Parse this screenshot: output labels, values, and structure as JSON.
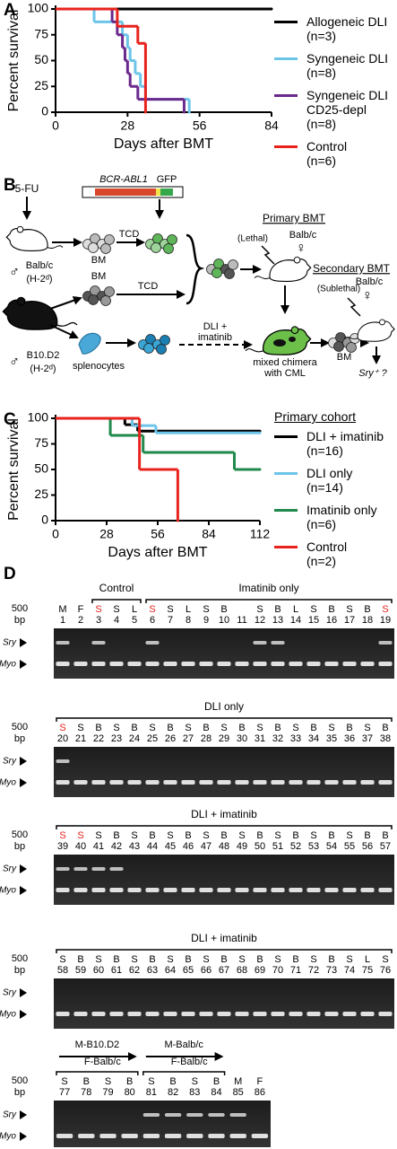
{
  "chart_data": [
    {
      "type": "survival",
      "panel": "A",
      "xlabel": "Days after BMT",
      "ylabel": "Percent survival",
      "xlim": [
        0,
        84
      ],
      "xticks": [
        0,
        28,
        56,
        84
      ],
      "ylim": [
        0,
        100
      ],
      "yticks": [
        0,
        25,
        50,
        75,
        100
      ],
      "series": [
        {
          "name": "Allogeneic DLI (n=3)",
          "color": "#000000",
          "x": [
            0,
            84
          ],
          "values": [
            100,
            100
          ]
        },
        {
          "name": "Syngeneic DLI (n=8)",
          "color": "#6cc5e9",
          "x": [
            0,
            15,
            26,
            28,
            29,
            31,
            33,
            35,
            52
          ],
          "values": [
            100,
            87.5,
            75,
            62.5,
            50,
            37.5,
            25,
            12.5,
            0
          ]
        },
        {
          "name": "Syngeneic DLI CD25-depl (n=8)",
          "color": "#6a2a8c",
          "x": [
            0,
            22,
            24,
            26,
            27,
            28,
            29,
            32,
            50
          ],
          "values": [
            100,
            87.5,
            75,
            62.5,
            50,
            37.5,
            25,
            12.5,
            0
          ]
        },
        {
          "name": "Control (n=6)",
          "color": "#e8231d",
          "x": [
            0,
            24,
            32,
            35
          ],
          "values": [
            100,
            83.3,
            66.7,
            0
          ]
        }
      ]
    },
    {
      "type": "survival",
      "panel": "C",
      "legend_title": "Primary cohort",
      "xlabel": "Days after BMT",
      "ylabel": "Percent survival",
      "xlim": [
        0,
        112
      ],
      "xticks": [
        0,
        28,
        56,
        84,
        112
      ],
      "ylim": [
        0,
        100
      ],
      "yticks": [
        0,
        25,
        50,
        75,
        100
      ],
      "series": [
        {
          "name": "DLI + imatinib (n=16)",
          "color": "#000000",
          "x": [
            0,
            38,
            45,
            112
          ],
          "values": [
            100,
            93.75,
            87.5,
            87.5
          ]
        },
        {
          "name": "DLI only (n=14)",
          "color": "#6cc5e9",
          "x": [
            0,
            42,
            55,
            112
          ],
          "values": [
            100,
            92.9,
            85.7,
            85.7
          ]
        },
        {
          "name": "Imatinib only (n=6)",
          "color": "#1f8a4c",
          "x": [
            0,
            30,
            48,
            98,
            112
          ],
          "values": [
            100,
            83.3,
            66.7,
            50,
            50
          ]
        },
        {
          "name": "Control (n=2)",
          "color": "#e8231d",
          "x": [
            0,
            46,
            67
          ],
          "values": [
            100,
            50,
            0
          ]
        }
      ]
    }
  ],
  "diagram": {
    "panel": "B",
    "drug": "5-FU",
    "gene": "BCR-ABL1",
    "reporter": "GFP",
    "tcd_1": "TCD",
    "tcd_2": "TCD",
    "bm_1": "BM",
    "bm_2": "BM",
    "bm_3": "BM",
    "host_sex": "♂",
    "host_strain": "Balb/c",
    "host_haplotype": "(H-2ᵈ)",
    "donor_sex": "♂",
    "donor_strain": "B10.D2",
    "donor_haplotype": "(H-2ᵈ)",
    "splenocytes": "splenocytes",
    "treatment": [
      "DLI +",
      "imatinib"
    ],
    "primary_title": "Primary BMT",
    "primary_dose": "(Lethal)",
    "primary_strain": "Balb/c",
    "primary_sex": "♀",
    "chimera": [
      "mixed chimera",
      "with CML"
    ],
    "secondary_title": "Secondary BMT",
    "secondary_dose": "(Sublethal)",
    "secondary_strain": "Balb/c",
    "secondary_sex": "♀",
    "readout": "Sry⁺ ?"
  },
  "gels": {
    "panel": "D",
    "marker": [
      "500",
      "bp"
    ],
    "band_labels": [
      "Sry",
      "Myo"
    ],
    "blots": [
      {
        "sections": [
          {
            "lanes": [
              {
                "number": 1,
                "label": "M",
                "sry": true
              },
              {
                "number": 2,
                "label": "F"
              }
            ]
          },
          {
            "title": "Control",
            "lanes": [
              {
                "number": 3,
                "label": "S",
                "color": "#e8231d",
                "sry": true
              },
              {
                "number": 4,
                "label": "S"
              },
              {
                "number": 5,
                "label": "L"
              }
            ]
          },
          {
            "title": "Imatinib only",
            "lanes": [
              {
                "number": 6,
                "label": "S",
                "color": "#e8231d",
                "sry": true
              },
              {
                "number": 7,
                "label": "S"
              },
              {
                "number": 8,
                "label": "L"
              },
              {
                "number": 9,
                "label": "S"
              },
              {
                "number": 10,
                "label": "B"
              },
              {
                "number": 11,
                "label": null
              },
              {
                "number": 12,
                "label": "S",
                "sry": true
              },
              {
                "number": 13,
                "label": "B",
                "sry": true
              },
              {
                "number": 14,
                "label": "L"
              },
              {
                "number": 15,
                "label": "S"
              },
              {
                "number": 16,
                "label": "B"
              },
              {
                "number": 17,
                "label": "S"
              },
              {
                "number": 18,
                "label": "B"
              },
              {
                "number": 19,
                "label": "S",
                "color": "#e8231d",
                "sry": true
              }
            ]
          }
        ]
      },
      {
        "sections": [
          {
            "title": "DLI only",
            "lanes": [
              {
                "number": 20,
                "label": "S",
                "color": "#e8231d",
                "sry": true
              },
              {
                "number": 21,
                "label": "S"
              },
              {
                "number": 22,
                "label": "B"
              },
              {
                "number": 23,
                "label": "S"
              },
              {
                "number": 24,
                "label": "B"
              },
              {
                "number": 25,
                "label": "S"
              },
              {
                "number": 26,
                "label": "B"
              },
              {
                "number": 27,
                "label": "S"
              },
              {
                "number": 28,
                "label": "B"
              },
              {
                "number": 29,
                "label": "S"
              },
              {
                "number": 30,
                "label": "B"
              },
              {
                "number": 31,
                "label": "S"
              },
              {
                "number": 32,
                "label": "B"
              },
              {
                "number": 33,
                "label": "S"
              },
              {
                "number": 34,
                "label": "B"
              },
              {
                "number": 35,
                "label": "S"
              },
              {
                "number": 36,
                "label": "B"
              },
              {
                "number": 37,
                "label": "S"
              },
              {
                "number": 38,
                "label": "B"
              }
            ]
          }
        ]
      },
      {
        "sections": [
          {
            "title": "DLI + imatinib",
            "lanes": [
              {
                "number": 39,
                "label": "S",
                "color": "#e8231d",
                "sry": true
              },
              {
                "number": 40,
                "label": "S",
                "color": "#e8231d",
                "sry": true
              },
              {
                "number": 41,
                "label": "S",
                "sry": true
              },
              {
                "number": 42,
                "label": "B",
                "sry": true
              },
              {
                "number": 43,
                "label": "S"
              },
              {
                "number": 44,
                "label": "B"
              },
              {
                "number": 45,
                "label": "S"
              },
              {
                "number": 46,
                "label": "B"
              },
              {
                "number": 47,
                "label": "S"
              },
              {
                "number": 48,
                "label": "B"
              },
              {
                "number": 49,
                "label": "S"
              },
              {
                "number": 50,
                "label": "B"
              },
              {
                "number": 51,
                "label": "S"
              },
              {
                "number": 52,
                "label": "B"
              },
              {
                "number": 53,
                "label": "S"
              },
              {
                "number": 54,
                "label": "B"
              },
              {
                "number": 55,
                "label": "S"
              },
              {
                "number": 56,
                "label": "B"
              },
              {
                "number": 57,
                "label": "B"
              }
            ]
          }
        ]
      },
      {
        "sections": [
          {
            "title": "DLI + imatinib",
            "lanes": [
              {
                "number": 58,
                "label": "S"
              },
              {
                "number": 59,
                "label": "B"
              },
              {
                "number": 60,
                "label": "S"
              },
              {
                "number": 61,
                "label": "B"
              },
              {
                "number": 62,
                "label": "S"
              },
              {
                "number": 63,
                "label": "B"
              },
              {
                "number": 64,
                "label": "S"
              },
              {
                "number": 65,
                "label": "B"
              },
              {
                "number": 66,
                "label": "S"
              },
              {
                "number": 67,
                "label": "B"
              },
              {
                "number": 68,
                "label": "S"
              },
              {
                "number": 69,
                "label": "B"
              },
              {
                "number": 70,
                "label": "S"
              },
              {
                "number": 71,
                "label": "B"
              },
              {
                "number": 72,
                "label": "S"
              },
              {
                "number": 73,
                "label": "B"
              },
              {
                "number": 74,
                "label": "S"
              },
              {
                "number": 75,
                "label": "L"
              },
              {
                "number": 76,
                "label": "S"
              }
            ]
          }
        ]
      },
      {
        "sections": [
          {
            "title": [
              "M-B10.D2",
              "F-Balb/c"
            ],
            "lanes": [
              {
                "number": 77,
                "label": "S"
              },
              {
                "number": 78,
                "label": "B"
              },
              {
                "number": 79,
                "label": "S"
              },
              {
                "number": 80,
                "label": "B"
              }
            ]
          },
          {
            "title": [
              "M-Balb/c",
              "F-Balb/c"
            ],
            "lanes": [
              {
                "number": 81,
                "label": "S",
                "sry": true
              },
              {
                "number": 82,
                "label": "B",
                "sry": true
              },
              {
                "number": 83,
                "label": "S",
                "sry": true
              },
              {
                "number": 84,
                "label": "B",
                "sry": true
              }
            ]
          },
          {
            "lanes": [
              {
                "number": 85,
                "label": "M",
                "sry": true
              },
              {
                "number": 86,
                "label": "F"
              }
            ]
          }
        ]
      }
    ]
  }
}
